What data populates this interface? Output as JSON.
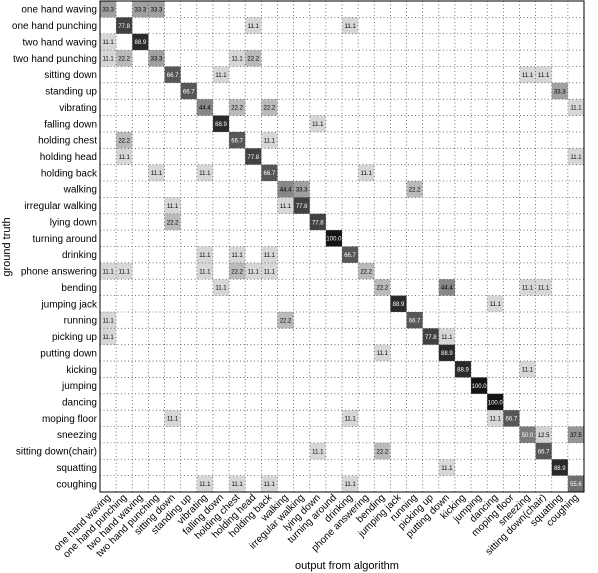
{
  "chart_data": {
    "type": "heatmap",
    "xlabel": "output from algorithm",
    "ylabel": "ground truth",
    "grid": true,
    "value_range": [
      0,
      100
    ],
    "colors": {
      "high": "#000000",
      "low": "#ffffff",
      "grid": "#555555"
    },
    "categories": [
      "one hand waving",
      "one hand punching",
      "two hand waving",
      "two hand punching",
      "sitting down",
      "standing up",
      "vibrating",
      "falling down",
      "holding chest",
      "holding head",
      "holding back",
      "walking",
      "irregular walking",
      "lying down",
      "turning around",
      "drinking",
      "phone answering",
      "bending",
      "jumping jack",
      "running",
      "picking up",
      "putting down",
      "kicking",
      "jumping",
      "dancing",
      "moping floor",
      "sneezing",
      "sitting down(chair)",
      "squatting",
      "coughing"
    ],
    "cells": [
      [
        0,
        0,
        33.3
      ],
      [
        0,
        2,
        33.3
      ],
      [
        0,
        3,
        33.3
      ],
      [
        1,
        1,
        77.8
      ],
      [
        1,
        9,
        11.1
      ],
      [
        1,
        15,
        11.1
      ],
      [
        2,
        0,
        11.1
      ],
      [
        2,
        2,
        88.9
      ],
      [
        3,
        0,
        11.1
      ],
      [
        3,
        1,
        22.2
      ],
      [
        3,
        3,
        33.3
      ],
      [
        3,
        8,
        11.1
      ],
      [
        3,
        9,
        22.2
      ],
      [
        4,
        4,
        66.7
      ],
      [
        4,
        7,
        11.1
      ],
      [
        4,
        26,
        11.1
      ],
      [
        4,
        27,
        11.1
      ],
      [
        5,
        5,
        66.7
      ],
      [
        5,
        28,
        33.3
      ],
      [
        6,
        6,
        44.4
      ],
      [
        6,
        8,
        22.2
      ],
      [
        6,
        10,
        22.2
      ],
      [
        6,
        29,
        11.1
      ],
      [
        7,
        7,
        88.9
      ],
      [
        7,
        13,
        11.1
      ],
      [
        8,
        1,
        22.2
      ],
      [
        8,
        8,
        66.7
      ],
      [
        8,
        10,
        11.1
      ],
      [
        9,
        1,
        11.1
      ],
      [
        9,
        9,
        77.8
      ],
      [
        9,
        29,
        11.1
      ],
      [
        10,
        3,
        11.1
      ],
      [
        10,
        6,
        11.1
      ],
      [
        10,
        10,
        66.7
      ],
      [
        10,
        16,
        11.1
      ],
      [
        11,
        11,
        44.4
      ],
      [
        11,
        12,
        33.3
      ],
      [
        11,
        19,
        22.2
      ],
      [
        12,
        4,
        11.1
      ],
      [
        12,
        11,
        11.1
      ],
      [
        12,
        12,
        77.8
      ],
      [
        13,
        4,
        22.2
      ],
      [
        13,
        13,
        77.8
      ],
      [
        14,
        14,
        100.0
      ],
      [
        15,
        6,
        11.1
      ],
      [
        15,
        8,
        11.1
      ],
      [
        15,
        10,
        11.1
      ],
      [
        15,
        15,
        66.7
      ],
      [
        16,
        0,
        11.1
      ],
      [
        16,
        1,
        11.1
      ],
      [
        16,
        6,
        11.1
      ],
      [
        16,
        8,
        22.2
      ],
      [
        16,
        9,
        11.1
      ],
      [
        16,
        10,
        11.1
      ],
      [
        16,
        16,
        22.2
      ],
      [
        17,
        7,
        11.1
      ],
      [
        17,
        17,
        22.2
      ],
      [
        17,
        21,
        44.4
      ],
      [
        17,
        26,
        11.1
      ],
      [
        17,
        27,
        11.1
      ],
      [
        18,
        18,
        88.9
      ],
      [
        18,
        24,
        11.1
      ],
      [
        19,
        0,
        11.1
      ],
      [
        19,
        11,
        22.2
      ],
      [
        19,
        19,
        66.7
      ],
      [
        20,
        0,
        11.1
      ],
      [
        20,
        20,
        77.8
      ],
      [
        20,
        21,
        11.1
      ],
      [
        21,
        17,
        11.1
      ],
      [
        21,
        21,
        88.9
      ],
      [
        22,
        22,
        88.9
      ],
      [
        22,
        26,
        11.1
      ],
      [
        23,
        23,
        100.0
      ],
      [
        24,
        24,
        100.0
      ],
      [
        25,
        4,
        11.1
      ],
      [
        25,
        15,
        11.1
      ],
      [
        25,
        24,
        11.1
      ],
      [
        25,
        25,
        66.7
      ],
      [
        26,
        26,
        50.0
      ],
      [
        26,
        27,
        12.5
      ],
      [
        26,
        29,
        37.5
      ],
      [
        27,
        13,
        11.1
      ],
      [
        27,
        17,
        22.2
      ],
      [
        27,
        27,
        66.7
      ],
      [
        28,
        21,
        11.1
      ],
      [
        28,
        28,
        88.9
      ],
      [
        29,
        6,
        11.1
      ],
      [
        29,
        8,
        11.1
      ],
      [
        29,
        10,
        11.1
      ],
      [
        29,
        15,
        11.1
      ],
      [
        29,
        29,
        55.6
      ]
    ]
  }
}
